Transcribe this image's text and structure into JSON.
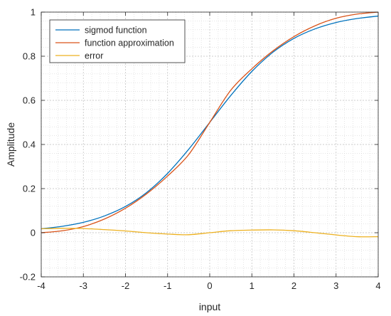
{
  "chart_data": {
    "type": "line",
    "title": "",
    "xlabel": "input",
    "ylabel": "Amplitude",
    "xlim": [
      -4,
      4
    ],
    "ylim": [
      -0.2,
      1
    ],
    "xticks": [
      -4,
      -3,
      -2,
      -1,
      0,
      1,
      2,
      3,
      4
    ],
    "yticks": [
      -0.2,
      0,
      0.2,
      0.4,
      0.6,
      0.8,
      1
    ],
    "xtick_labels": [
      "-4",
      "-3",
      "-2",
      "-1",
      "0",
      "1",
      "2",
      "3",
      "4"
    ],
    "ytick_labels": [
      "-0.2",
      "0",
      "0.2",
      "0.4",
      "0.6",
      "0.8",
      "1"
    ],
    "grid": "on (major and minor, dotted)",
    "legend_position": "top-left",
    "x": [
      -4,
      -3.5,
      -3,
      -2.5,
      -2,
      -1.5,
      -1,
      -0.5,
      0,
      0.5,
      1,
      1.5,
      2,
      2.5,
      3,
      3.5,
      4
    ],
    "series": [
      {
        "name": "sigmod function",
        "color": "#0072BD",
        "values": [
          0.018,
          0.029,
          0.047,
          0.076,
          0.119,
          0.182,
          0.269,
          0.378,
          0.5,
          0.622,
          0.731,
          0.818,
          0.881,
          0.924,
          0.953,
          0.971,
          0.982
        ]
      },
      {
        "name": "function approximation",
        "color": "#D95319",
        "values": [
          0.0,
          0.009,
          0.028,
          0.062,
          0.111,
          0.176,
          0.257,
          0.354,
          0.5,
          0.646,
          0.743,
          0.824,
          0.889,
          0.938,
          0.972,
          0.991,
          1.0
        ]
      },
      {
        "name": "error",
        "color": "#EDB120",
        "values": [
          0.018,
          0.02,
          0.019,
          0.014,
          0.008,
          0.0,
          -0.006,
          -0.009,
          0.0,
          0.009,
          0.012,
          0.013,
          0.009,
          0.0,
          -0.01,
          -0.018,
          -0.018
        ]
      }
    ]
  }
}
